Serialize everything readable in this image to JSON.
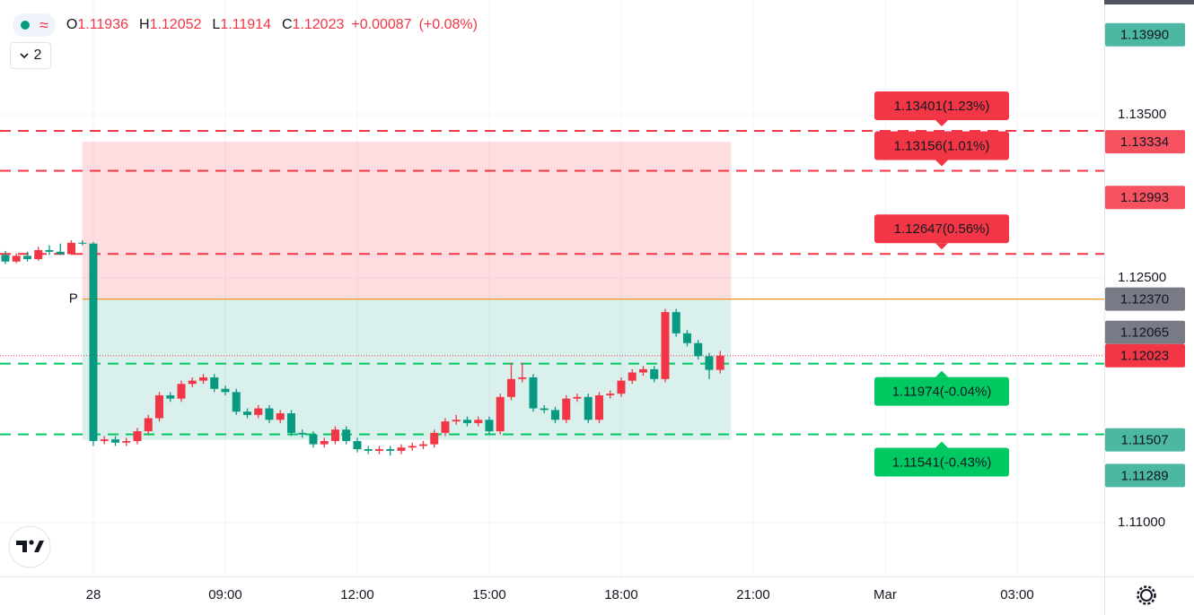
{
  "header": {
    "labels": [
      "O",
      "H",
      "L",
      "C"
    ],
    "values": [
      1.11936,
      1.12052,
      1.11914,
      1.12023
    ],
    "change": {
      "value": 0.00087,
      "label": "+0.00087"
    },
    "change_pct": {
      "value": 0.08,
      "label": "(+0.08%)"
    },
    "indicator_count": 2
  },
  "chart_data": {
    "type": "candlestick",
    "up_color": "#f23645",
    "down_color": "#089981",
    "xlim": [
      -2.122,
      22.98
    ],
    "ylim": [
      1.1067,
      1.14203
    ],
    "xticks": [
      {
        "value": 0,
        "label": "28"
      },
      {
        "value": 3,
        "label": "09:00"
      },
      {
        "value": 6,
        "label": "12:00"
      },
      {
        "value": 9,
        "label": "15:00"
      },
      {
        "value": 12,
        "label": "18:00"
      },
      {
        "value": 15,
        "label": "21:00"
      },
      {
        "value": 18,
        "label": "Mar"
      },
      {
        "value": 21,
        "label": "03:00"
      }
    ],
    "yticks": [
      {
        "value": 1.135,
        "label": "1.13500"
      },
      {
        "value": 1.125,
        "label": "1.12500"
      },
      {
        "value": 1.11,
        "label": "1.11000"
      }
    ],
    "grid": true,
    "x": [
      -2,
      -1.75,
      -1.5,
      -1.25,
      -1,
      -0.75,
      -0.5,
      -0.25,
      0,
      0.25,
      0.5,
      0.75,
      1,
      1.25,
      1.5,
      1.75,
      2,
      2.25,
      2.5,
      2.75,
      3,
      3.25,
      3.5,
      3.75,
      4,
      4.25,
      4.5,
      4.75,
      5,
      5.25,
      5.5,
      5.75,
      6,
      6.25,
      6.5,
      6.75,
      7,
      7.25,
      7.5,
      7.75,
      8,
      8.25,
      8.5,
      8.75,
      9,
      9.25,
      9.5,
      9.75,
      10,
      10.25,
      10.5,
      10.75,
      11,
      11.25,
      11.5,
      11.75,
      12,
      12.25,
      12.5,
      12.75,
      13,
      13.25,
      13.5,
      13.75,
      14,
      14.25
    ],
    "open": [
      1.1264,
      1.126,
      1.12635,
      1.12615,
      1.1267,
      1.1266,
      1.12645,
      1.12715,
      1.1271,
      1.115,
      1.1151,
      1.1149,
      1.115,
      1.1156,
      1.1164,
      1.1178,
      1.1176,
      1.1185,
      1.1187,
      1.1189,
      1.1182,
      1.118,
      1.1168,
      1.1166,
      1.117,
      1.1163,
      1.1167,
      1.1155,
      1.1154,
      1.1148,
      1.115,
      1.1157,
      1.115,
      1.1145,
      1.1144,
      1.1145,
      1.1144,
      1.1146,
      1.1147,
      1.1148,
      1.1155,
      1.1162,
      1.1163,
      1.1161,
      1.1163,
      1.1156,
      1.1177,
      1.1188,
      1.1189,
      1.117,
      1.1169,
      1.1163,
      1.1176,
      1.1177,
      1.1163,
      1.1178,
      1.1179,
      1.1187,
      1.1192,
      1.1194,
      1.1188,
      1.1229,
      1.1216,
      1.121,
      1.1202,
      1.11936
    ],
    "high": [
      1.12665,
      1.1265,
      1.1266,
      1.1269,
      1.127,
      1.1271,
      1.1273,
      1.1273,
      1.1272,
      1.1153,
      1.1153,
      1.1152,
      1.1158,
      1.1166,
      1.118,
      1.118,
      1.1187,
      1.1189,
      1.1191,
      1.1191,
      1.1184,
      1.1182,
      1.117,
      1.1172,
      1.1172,
      1.1169,
      1.1169,
      1.1157,
      1.1156,
      1.1152,
      1.1159,
      1.1159,
      1.1152,
      1.1147,
      1.1147,
      1.1147,
      1.1148,
      1.1149,
      1.115,
      1.1157,
      1.1164,
      1.1166,
      1.1165,
      1.1165,
      1.1165,
      1.1179,
      1.1198,
      1.1198,
      1.1191,
      1.1172,
      1.1171,
      1.1178,
      1.1179,
      1.1179,
      1.118,
      1.1181,
      1.1189,
      1.1194,
      1.1196,
      1.1196,
      1.1231,
      1.1231,
      1.1218,
      1.1212,
      1.1204,
      1.12052
    ],
    "low": [
      1.12585,
      1.1259,
      1.126,
      1.12605,
      1.1264,
      1.1264,
      1.1264,
      1.127,
      1.1147,
      1.1148,
      1.1147,
      1.1147,
      1.1148,
      1.1154,
      1.1162,
      1.1174,
      1.1174,
      1.1183,
      1.1185,
      1.118,
      1.1178,
      1.1166,
      1.1164,
      1.1164,
      1.1161,
      1.1161,
      1.1153,
      1.1152,
      1.1146,
      1.1146,
      1.1148,
      1.1148,
      1.1143,
      1.1142,
      1.1142,
      1.1141,
      1.1142,
      1.1144,
      1.1145,
      1.1146,
      1.1153,
      1.116,
      1.1159,
      1.1159,
      1.1154,
      1.1154,
      1.1175,
      1.1186,
      1.1168,
      1.1167,
      1.1161,
      1.1161,
      1.1174,
      1.1161,
      1.1161,
      1.1176,
      1.1177,
      1.1185,
      1.119,
      1.1186,
      1.1186,
      1.1214,
      1.1208,
      1.12,
      1.1188,
      1.11914
    ],
    "close": [
      1.126,
      1.12635,
      1.12615,
      1.1267,
      1.1266,
      1.12645,
      1.12715,
      1.1271,
      1.115,
      1.1151,
      1.1149,
      1.115,
      1.1156,
      1.1164,
      1.1178,
      1.1176,
      1.1185,
      1.1187,
      1.1189,
      1.1182,
      1.118,
      1.1168,
      1.1166,
      1.117,
      1.1163,
      1.1167,
      1.1155,
      1.1154,
      1.1148,
      1.115,
      1.1157,
      1.115,
      1.1145,
      1.1144,
      1.1145,
      1.1144,
      1.1146,
      1.1147,
      1.1148,
      1.1155,
      1.1162,
      1.1163,
      1.1161,
      1.1163,
      1.1156,
      1.1177,
      1.1188,
      1.1189,
      1.117,
      1.1169,
      1.1163,
      1.1176,
      1.1177,
      1.1163,
      1.1178,
      1.1179,
      1.1187,
      1.1192,
      1.1194,
      1.1188,
      1.1229,
      1.1216,
      1.121,
      1.1202,
      1.11936,
      1.12023
    ],
    "position": {
      "label": "P",
      "start": -0.25,
      "end": 14.5,
      "entry": 1.1237,
      "stop": 1.13334,
      "target": 1.11507,
      "entry_color": "#f7931a"
    },
    "levels": [
      {
        "value": 1.13401,
        "label": "1.13401(1.23%)",
        "color": "#f23645",
        "side": "above"
      },
      {
        "value": 1.13156,
        "label": "1.13156(1.01%)",
        "color": "#f23645",
        "side": "above"
      },
      {
        "value": 1.12647,
        "label": "1.12647(0.56%)",
        "color": "#f23645",
        "side": "above"
      },
      {
        "value": 1.11974,
        "label": "1.11974(-0.04%)",
        "color": "#00c962",
        "side": "below"
      },
      {
        "value": 1.11541,
        "label": "1.11541(-0.43%)",
        "color": "#00c962",
        "side": "below"
      }
    ],
    "price_tags": [
      {
        "value": 1.1399,
        "label": "1.13990",
        "color": "#4cb8a4"
      },
      {
        "value": 1.13334,
        "label": "1.13334",
        "color": "#f7525f"
      },
      {
        "value": 1.12993,
        "label": "1.12993",
        "color": "#f7525f"
      },
      {
        "value": 1.1237,
        "label": "1.12370",
        "color": "#787b86"
      },
      {
        "value": 1.12065,
        "label": "1.12065",
        "color": "#787b86"
      },
      {
        "value": 1.12023,
        "label": "1.12023",
        "color": "#f23645"
      },
      {
        "value": 1.11507,
        "label": "1.11507",
        "color": "#4cb8a4"
      },
      {
        "value": 1.11289,
        "label": "1.11289",
        "color": "#4cb8a4"
      }
    ]
  }
}
